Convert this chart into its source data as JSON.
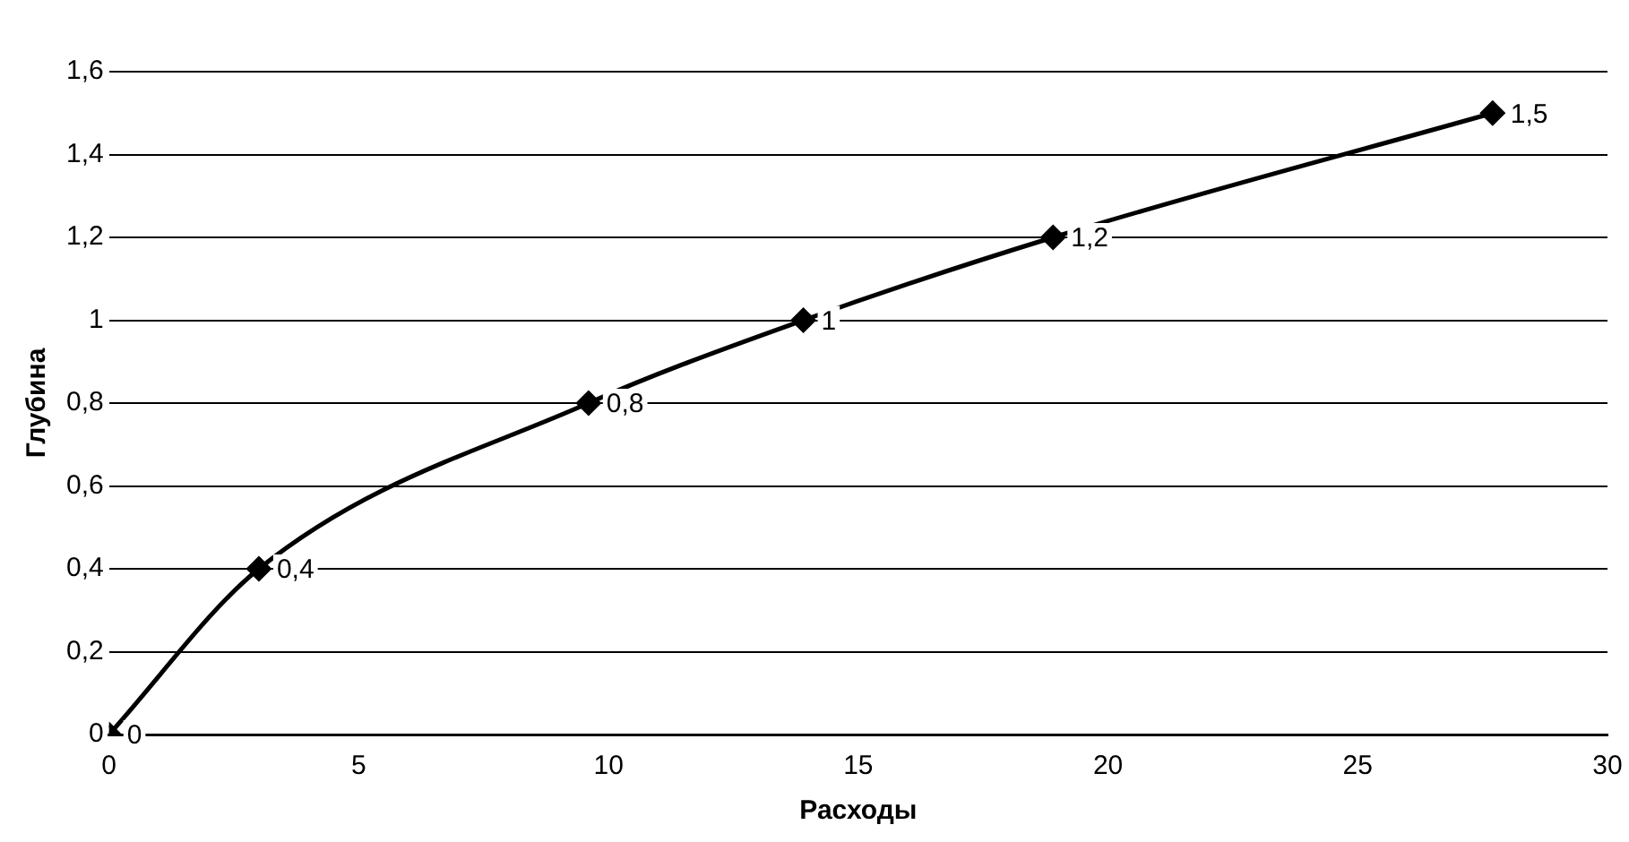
{
  "chart_data": {
    "type": "line",
    "xlabel": "Расходы",
    "ylabel": "Глубина",
    "x": [
      0,
      3,
      9.6,
      13.9,
      18.9,
      27.7
    ],
    "series": [
      {
        "color": "#000000",
        "values": [
          0,
          0.4,
          0.8,
          1,
          1.2,
          1.5
        ],
        "value_labels": [
          "0",
          "0,4",
          "0,8",
          "1",
          "1,2",
          "1,5"
        ]
      }
    ],
    "xlim": [
      0,
      30
    ],
    "xticks": [
      0,
      5,
      10,
      15,
      20,
      25,
      30
    ],
    "ylim": [
      0,
      1.6
    ],
    "yticks": [
      0,
      {
        "value": 0.2,
        "label": "0,2"
      },
      {
        "value": 0.4,
        "label": "0,4"
      },
      {
        "value": 0.6,
        "label": "0,6"
      },
      {
        "value": 0.8,
        "label": "0,8"
      },
      1,
      {
        "value": 1.2,
        "label": "1,2"
      },
      {
        "value": 1.4,
        "label": "1,4"
      },
      {
        "value": 1.6,
        "label": "1,6"
      }
    ],
    "grid": "y",
    "marker": "diamond",
    "legend": false
  }
}
